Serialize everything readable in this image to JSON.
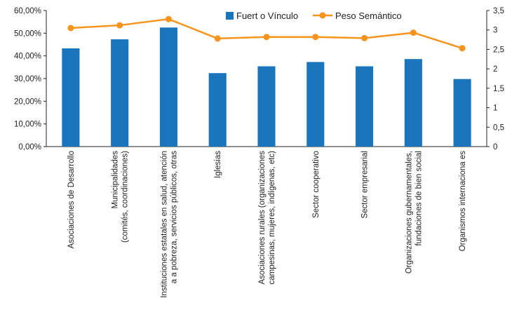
{
  "chart_data": {
    "type": "bar",
    "categories": [
      [
        "Asociaciones de Desarrollo"
      ],
      [
        "Municipalidades",
        "(comités, coordinaciones)"
      ],
      [
        "Instituciones estatales en salud, atención",
        "a a pobreza, servicios públicos, otras"
      ],
      [
        "Iglesias"
      ],
      [
        "Asociaciones rurales (organizaciones",
        "campesinas, mujeres, indígenas, etc)"
      ],
      [
        "Sector cooperativo"
      ],
      [
        "Sector empresarial"
      ],
      [
        "Organizaciones gubernamentales,",
        "fundaciones de bien social"
      ],
      [
        "Organismos internaciona es"
      ]
    ],
    "series": [
      {
        "name": "Fuert o Vínculo",
        "type": "bar",
        "axis": "left",
        "color": "#1a75bc",
        "values": [
          43.3,
          47.3,
          52.5,
          32.4,
          35.4,
          37.3,
          35.4,
          38.6,
          29.8
        ]
      },
      {
        "name": "Peso Semántico",
        "type": "line",
        "axis": "right",
        "color": "#f7941d",
        "values": [
          3.05,
          3.12,
          3.28,
          2.78,
          2.82,
          2.82,
          2.79,
          2.93,
          2.53
        ]
      }
    ],
    "y_left": {
      "min": 0,
      "max": 60,
      "step": 10,
      "ticks": [
        "0,00%",
        "10,00%",
        "20,00%",
        "30,00%",
        "40,00%",
        "50,00%",
        "60,00%"
      ]
    },
    "y_right": {
      "min": 0,
      "max": 3.5,
      "step": 0.5,
      "ticks": [
        "0",
        "0,5",
        "1",
        "1,5",
        "2",
        "2,5",
        "3",
        "3,5"
      ]
    },
    "grid": false,
    "legend_position": "top-center"
  }
}
